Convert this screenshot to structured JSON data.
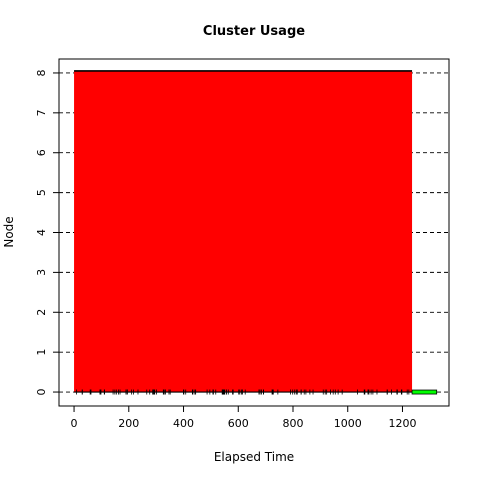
{
  "chart_data": {
    "type": "bar",
    "orientation": "horizontal",
    "title": "Cluster Usage",
    "xlabel": "Elapsed Time",
    "ylabel": "Node",
    "xlim": [
      -55,
      1370
    ],
    "ylim": [
      -0.35,
      8.35
    ],
    "x_ticks": [
      0,
      200,
      400,
      600,
      800,
      1000,
      1200
    ],
    "y_ticks": [
      0,
      1,
      2,
      3,
      4,
      5,
      6,
      7,
      8
    ],
    "grid": "horizontal dashed at each node",
    "series": [
      {
        "color": "#ff0000",
        "values": [
          {
            "node_start": 0,
            "node_end": 8.05,
            "start": 0,
            "end": 1235
          }
        ]
      },
      {
        "color": "#00ff00",
        "values": [
          {
            "node": 0,
            "start": 1235,
            "end": 1325
          }
        ]
      }
    ],
    "event_marks_node": 0,
    "event_marks_range": [
      0,
      1235
    ]
  }
}
